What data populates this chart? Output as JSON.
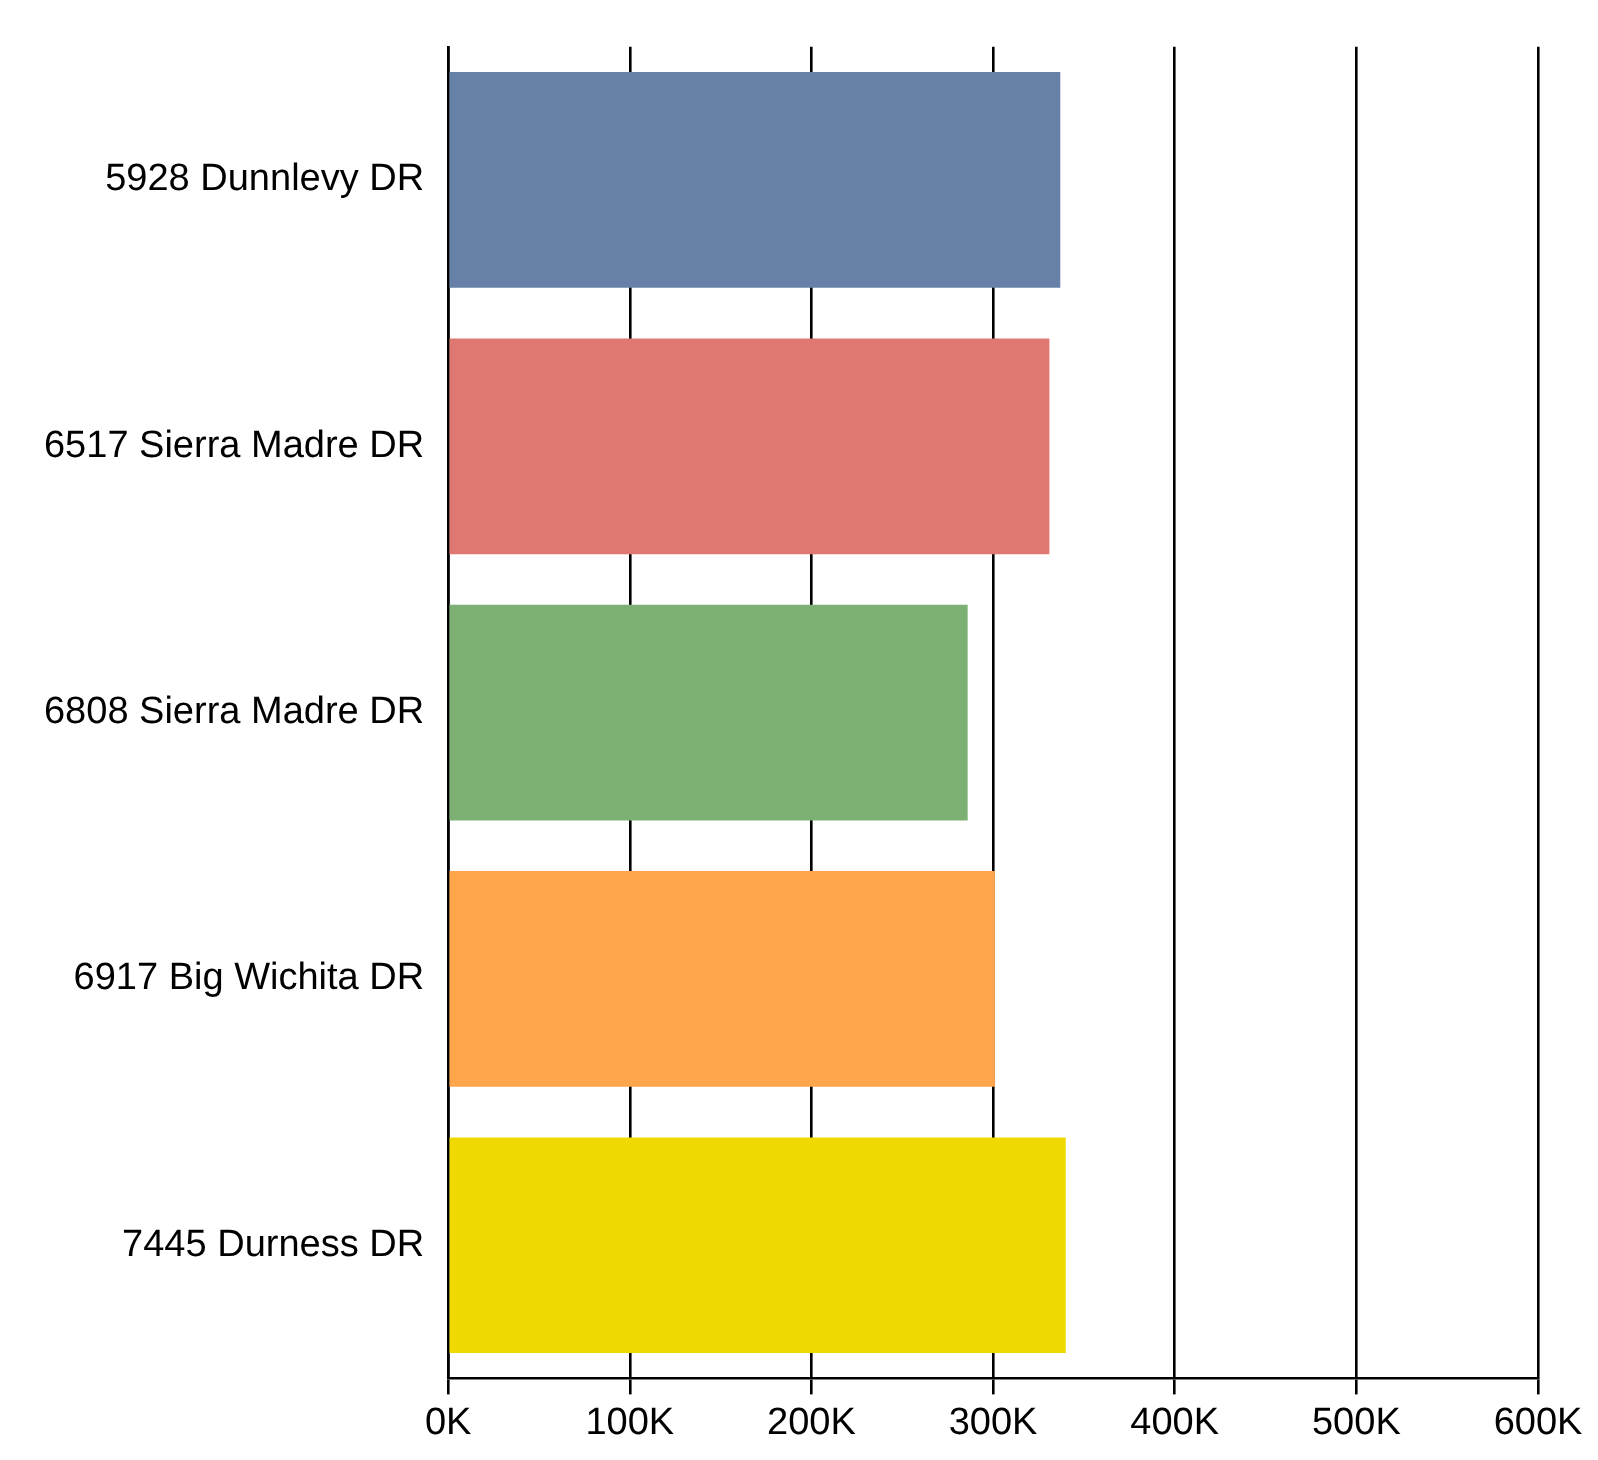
{
  "chart_data": {
    "type": "bar",
    "orientation": "horizontal",
    "categories": [
      "5928 Dunnlevy DR",
      "6517 Sierra Madre DR",
      "6808 Sierra Madre DR",
      "6917 Big Wichita DR",
      "7445 Durness DR"
    ],
    "values": [
      337000,
      331000,
      286000,
      301000,
      340000
    ],
    "colors": [
      "#6680a8",
      "#e07872",
      "#7db174",
      "#ffa54b",
      "#eed900"
    ],
    "xlim": [
      0,
      600000
    ],
    "xticks": [
      {
        "value": 0,
        "label": "0K"
      },
      {
        "value": 100000,
        "label": "100K"
      },
      {
        "value": 200000,
        "label": "200K"
      },
      {
        "value": 300000,
        "label": "300K"
      },
      {
        "value": 400000,
        "label": "400K"
      },
      {
        "value": 500000,
        "label": "500K"
      },
      {
        "value": 600000,
        "label": "600K"
      }
    ],
    "grid": "x",
    "legend": false
  }
}
